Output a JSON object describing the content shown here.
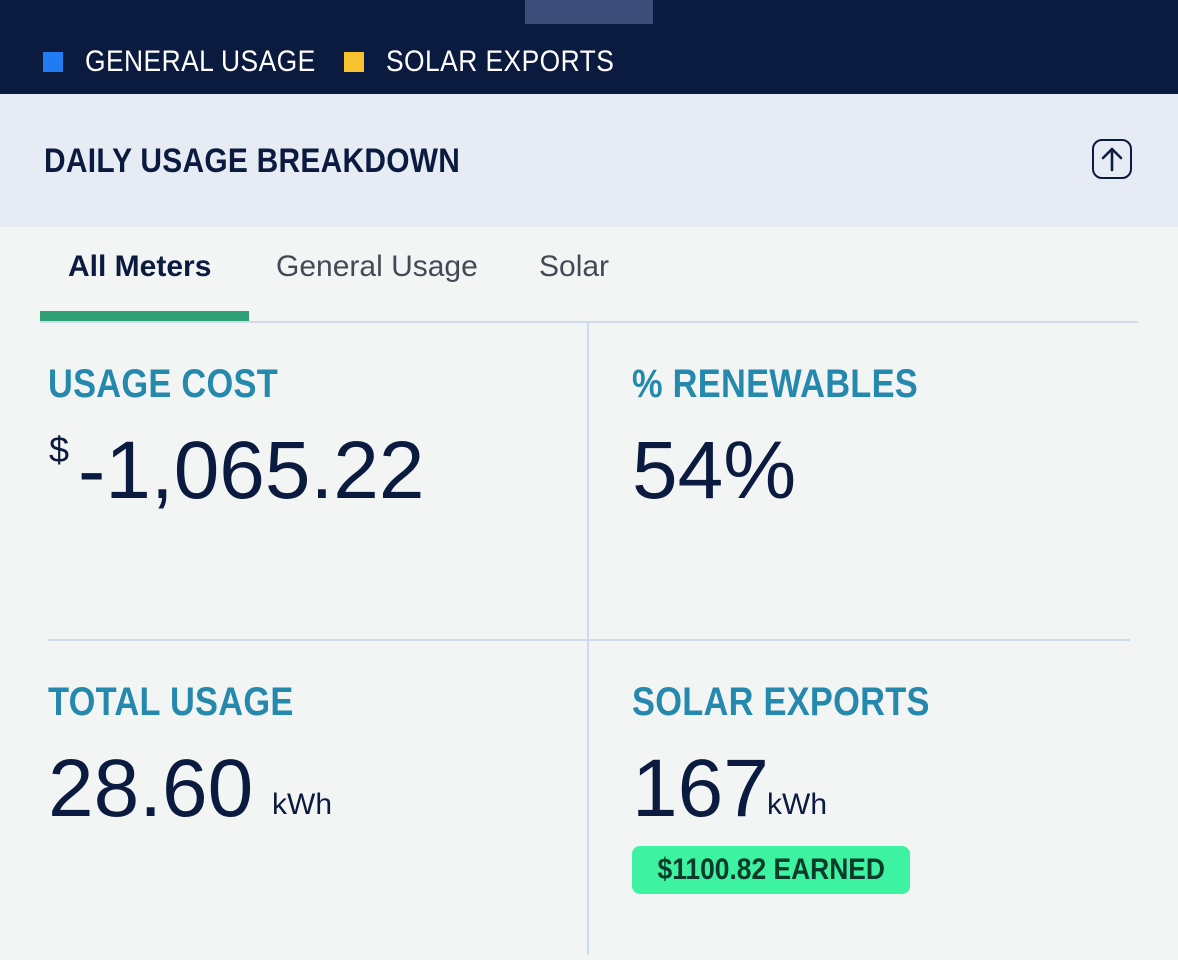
{
  "legend": [
    {
      "label": "GENERAL USAGE",
      "color": "#1f7cf2"
    },
    {
      "label": "SOLAR EXPORTS",
      "color": "#f7c22e"
    }
  ],
  "header": {
    "title": "DAILY USAGE BREAKDOWN",
    "collapse_icon": "arrow-up-icon"
  },
  "tabs": [
    {
      "label": "All Meters",
      "active": true
    },
    {
      "label": "General Usage",
      "active": false
    },
    {
      "label": "Solar",
      "active": false
    }
  ],
  "metrics": {
    "usage_cost": {
      "label": "USAGE COST",
      "currency": "$",
      "value": "-1,065.22"
    },
    "renewables": {
      "label": "% RENEWABLES",
      "value": "54%"
    },
    "total_usage": {
      "label": "TOTAL USAGE",
      "value": "28.60",
      "unit": "kWh"
    },
    "solar_exports": {
      "label": "SOLAR EXPORTS",
      "value": "167",
      "unit": "kWh",
      "earned": "$1100.82 EARNED"
    }
  },
  "colors": {
    "topbar": "#0b1a3f",
    "accent_label": "#2588ad",
    "tab_active": "#2e9e74",
    "earned_badge": "#3df2a0"
  }
}
